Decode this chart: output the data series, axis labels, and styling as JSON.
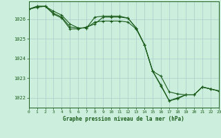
{
  "title": "Graphe pression niveau de la mer (hPa)",
  "bg_color": "#cceedd",
  "grid_color": "#aacccc",
  "line_color": "#1a5c1a",
  "xlim": [
    0,
    23
  ],
  "ylim": [
    1021.5,
    1026.9
  ],
  "yticks": [
    1022,
    1023,
    1024,
    1025,
    1026
  ],
  "xticks": [
    0,
    1,
    2,
    3,
    4,
    5,
    6,
    7,
    8,
    9,
    10,
    11,
    12,
    13,
    14,
    15,
    16,
    17,
    18,
    19,
    20,
    21,
    22,
    23
  ],
  "series": [
    [
      1026.5,
      1026.6,
      1026.65,
      1026.4,
      1026.2,
      1025.75,
      1025.55,
      1025.55,
      1026.1,
      1026.15,
      1026.15,
      1026.15,
      1026.05,
      1025.55,
      1024.7,
      1023.35,
      1022.65,
      1021.85,
      1022.0,
      1022.15,
      1022.15,
      1022.55,
      1022.45,
      1022.35
    ],
    [
      1026.5,
      1026.65,
      1026.65,
      1026.25,
      1026.05,
      1025.5,
      1025.5,
      1025.6,
      1025.75,
      1026.1,
      1026.1,
      1026.1,
      1026.05,
      1025.55,
      1024.7,
      1023.35,
      1022.6,
      1021.85,
      1021.95,
      1022.15,
      1022.15,
      1022.55,
      1022.45,
      1022.35
    ],
    [
      1026.5,
      1026.65,
      1026.65,
      1026.3,
      1026.1,
      1025.6,
      1025.55,
      1025.55,
      1025.85,
      1025.9,
      1025.9,
      1025.9,
      1025.85,
      1025.5,
      1024.7,
      1023.35,
      1023.1,
      1022.3,
      1022.2,
      1022.15,
      1022.15,
      1022.55,
      1022.45,
      1022.35
    ]
  ]
}
